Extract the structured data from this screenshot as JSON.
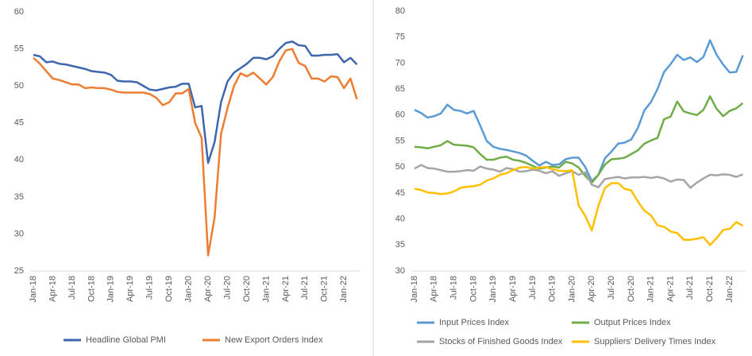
{
  "chart_data": [
    {
      "type": "line",
      "categories": [
        "Jan-18",
        null,
        null,
        "Apr-18",
        null,
        null,
        "Jul-18",
        null,
        null,
        "Oct-18",
        null,
        null,
        "Jan-19",
        null,
        null,
        "Apr-19",
        null,
        null,
        "Jul-19",
        null,
        null,
        "Oct-19",
        null,
        null,
        "Jan-20",
        null,
        null,
        "Apr-20",
        null,
        null,
        "Jul-20",
        null,
        null,
        "Oct-20",
        null,
        null,
        "Jan-21",
        null,
        null,
        "Apr-21",
        null,
        null,
        "Jul-21",
        null,
        null,
        "Oct-21",
        null,
        null,
        "Jan-22",
        null,
        null
      ],
      "ylim": [
        25,
        60
      ],
      "yticks": [
        25,
        30,
        35,
        40,
        45,
        50,
        55,
        60
      ],
      "grid": false,
      "legend": "bottom",
      "series": [
        {
          "name": "Headline Global PMI",
          "color": "#3f67ae",
          "values": [
            54.2,
            54.0,
            53.2,
            53.3,
            53.0,
            52.9,
            52.7,
            52.5,
            52.3,
            52.0,
            51.9,
            51.8,
            51.5,
            50.7,
            50.6,
            50.6,
            50.5,
            50.0,
            49.5,
            49.4,
            49.6,
            49.8,
            49.9,
            50.3,
            50.3,
            47.1,
            47.3,
            39.6,
            42.4,
            47.8,
            50.6,
            51.8,
            52.4,
            53.0,
            53.8,
            53.8,
            53.6,
            54.0,
            55.0,
            55.8,
            56.0,
            55.5,
            55.4,
            54.1,
            54.1,
            54.2,
            54.2,
            54.3,
            53.2,
            53.8,
            52.9
          ]
        },
        {
          "name": "New Export Orders Index",
          "color": "#ed7d31",
          "values": [
            53.8,
            53.0,
            52.0,
            51.0,
            50.8,
            50.5,
            50.2,
            50.2,
            49.7,
            49.8,
            49.7,
            49.7,
            49.5,
            49.2,
            49.1,
            49.1,
            49.1,
            49.1,
            48.9,
            48.4,
            47.4,
            47.8,
            49.0,
            49.0,
            49.6,
            45.0,
            43.0,
            27.1,
            32.2,
            43.5,
            47.0,
            50.0,
            51.7,
            51.3,
            51.8,
            51.0,
            50.2,
            51.2,
            53.3,
            54.8,
            55.0,
            53.1,
            52.7,
            51.0,
            51.0,
            50.6,
            51.3,
            51.2,
            49.7,
            51.0,
            48.2
          ]
        }
      ]
    },
    {
      "type": "line",
      "categories": [
        "Jan-18",
        null,
        null,
        "Apr-18",
        null,
        null,
        "Jul-18",
        null,
        null,
        "Oct-18",
        null,
        null,
        "Jan-19",
        null,
        null,
        "Apr-19",
        null,
        null,
        "Jul-19",
        null,
        null,
        "Oct-19",
        null,
        null,
        "Jan-20",
        null,
        null,
        "Apr-20",
        null,
        null,
        "Jul-20",
        null,
        null,
        "Oct-20",
        null,
        null,
        "Jan-21",
        null,
        null,
        "Apr-21",
        null,
        null,
        "Jul-21",
        null,
        null,
        "Oct-21",
        null,
        null,
        "Jan-22",
        null,
        null
      ],
      "ylim": [
        30,
        80
      ],
      "yticks": [
        30,
        35,
        40,
        45,
        50,
        55,
        60,
        65,
        70,
        75,
        80
      ],
      "grid": false,
      "legend": "bottom",
      "series": [
        {
          "name": "Input Prices Index",
          "color": "#5b9bd5",
          "values": [
            61.0,
            60.4,
            59.5,
            59.8,
            60.3,
            62.0,
            61.0,
            60.8,
            60.3,
            60.8,
            58.0,
            55.0,
            53.9,
            53.5,
            53.3,
            53.0,
            52.7,
            52.2,
            51.2,
            50.3,
            51.0,
            50.4,
            50.5,
            51.5,
            51.8,
            51.8,
            50.0,
            47.3,
            48.5,
            51.7,
            53.0,
            54.5,
            54.7,
            55.3,
            57.5,
            60.9,
            62.5,
            65.0,
            68.3,
            69.8,
            71.6,
            70.6,
            71.1,
            70.2,
            71.2,
            74.4,
            71.6,
            69.7,
            68.2,
            68.3,
            71.5
          ]
        },
        {
          "name": "Output Prices Index",
          "color": "#70ad47",
          "values": [
            53.9,
            53.8,
            53.6,
            53.9,
            54.2,
            55.0,
            54.3,
            54.2,
            54.1,
            53.8,
            52.5,
            51.4,
            51.4,
            51.8,
            52.0,
            51.4,
            51.2,
            50.8,
            50.2,
            49.7,
            49.9,
            50.1,
            49.9,
            51.0,
            50.7,
            49.9,
            48.3,
            47.0,
            48.5,
            50.5,
            51.5,
            51.6,
            51.8,
            52.5,
            53.2,
            54.5,
            55.1,
            55.6,
            59.2,
            59.7,
            62.6,
            60.7,
            60.3,
            60.0,
            61.0,
            63.6,
            61.2,
            59.8,
            60.8,
            61.3,
            62.3
          ]
        },
        {
          "name": "Stocks of Finished Goods Index",
          "color": "#a5a5a5",
          "values": [
            49.7,
            50.4,
            49.8,
            49.7,
            49.4,
            49.1,
            49.1,
            49.2,
            49.4,
            49.3,
            50.1,
            49.7,
            49.5,
            49.1,
            49.8,
            49.6,
            49.1,
            49.2,
            49.5,
            49.3,
            48.8,
            49.2,
            48.3,
            48.8,
            49.2,
            48.5,
            49.0,
            46.6,
            46.1,
            47.7,
            47.9,
            48.1,
            47.8,
            48.0,
            48.0,
            48.1,
            47.9,
            48.1,
            47.8,
            47.2,
            47.6,
            47.5,
            46.0,
            47.0,
            47.8,
            48.5,
            48.4,
            48.6,
            48.5,
            48.1,
            48.6
          ]
        },
        {
          "name": "Suppliers' Delivery Times Index",
          "color": "#ffc000",
          "values": [
            45.8,
            45.6,
            45.1,
            45.0,
            44.8,
            44.9,
            45.3,
            46.0,
            46.2,
            46.3,
            46.6,
            47.4,
            47.8,
            48.5,
            48.8,
            49.4,
            49.9,
            50.0,
            49.7,
            49.9,
            50.0,
            49.6,
            49.3,
            49.2,
            49.4,
            42.6,
            40.6,
            37.8,
            42.5,
            46.0,
            46.9,
            46.9,
            45.8,
            45.5,
            43.4,
            41.6,
            40.7,
            38.8,
            38.5,
            37.6,
            37.3,
            36.0,
            36.0,
            36.2,
            36.5,
            35.0,
            36.3,
            37.9,
            38.1,
            39.4,
            38.7
          ]
        }
      ]
    }
  ]
}
